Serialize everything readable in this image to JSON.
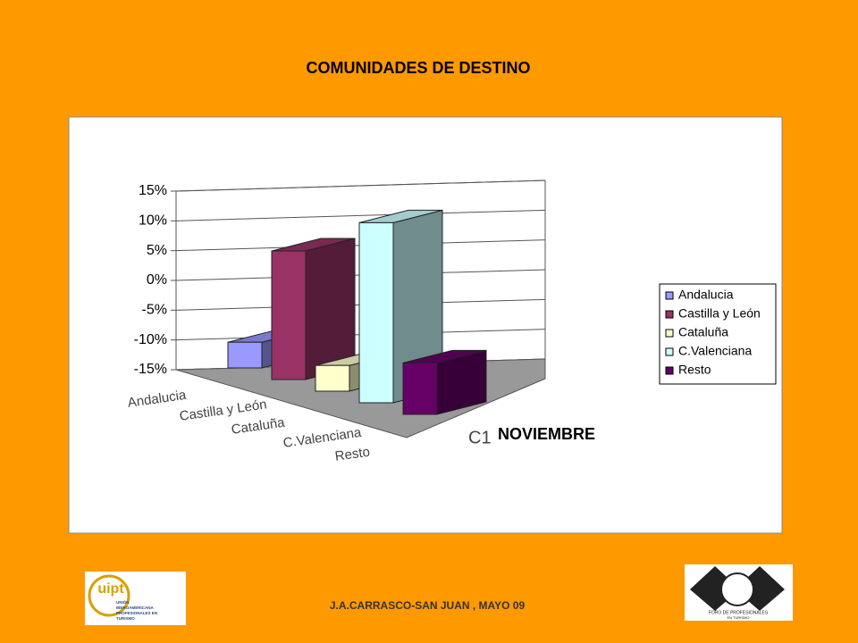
{
  "slide": {
    "footer": "J.A.CARRASCO-SAN JUAN , MAYO 09",
    "logo_left": {
      "mark": "uipt",
      "lines": [
        "UNIÓN",
        "IBEROAMERICANA",
        "PROFESIONALES EN",
        "TURISMO"
      ]
    },
    "logo_right": {
      "lines": [
        "FORO DE PROFESIONALES",
        "EN TURISMO"
      ]
    }
  },
  "chart_data": {
    "type": "bar3d",
    "title": "COMUNIDADES DE DESTINO",
    "categories": [
      "C1"
    ],
    "xlabel": "NOVIEMBRE",
    "series": [
      {
        "name": "Andalucia",
        "color": "#9999ff",
        "values": [
          -11
        ]
      },
      {
        "name": "Castilla y León",
        "color": "#993366",
        "values": [
          5
        ]
      },
      {
        "name": "Cataluña",
        "color": "#ffffcc",
        "values": [
          -11
        ]
      },
      {
        "name": "C.Valenciana",
        "color": "#ccffff",
        "values": [
          13
        ]
      },
      {
        "name": "Resto",
        "color": "#660066",
        "values": [
          -7
        ]
      }
    ],
    "ylim": [
      -15,
      15
    ],
    "yticks": [
      {
        "value": -15,
        "label": "-15%"
      },
      {
        "value": -10,
        "label": "-10%"
      },
      {
        "value": -5,
        "label": "-5%"
      },
      {
        "value": 0,
        "label": "0%"
      },
      {
        "value": 5,
        "label": "5%"
      },
      {
        "value": 10,
        "label": "10%"
      },
      {
        "value": 15,
        "label": "15%"
      }
    ],
    "grid": true,
    "legend": "right"
  }
}
